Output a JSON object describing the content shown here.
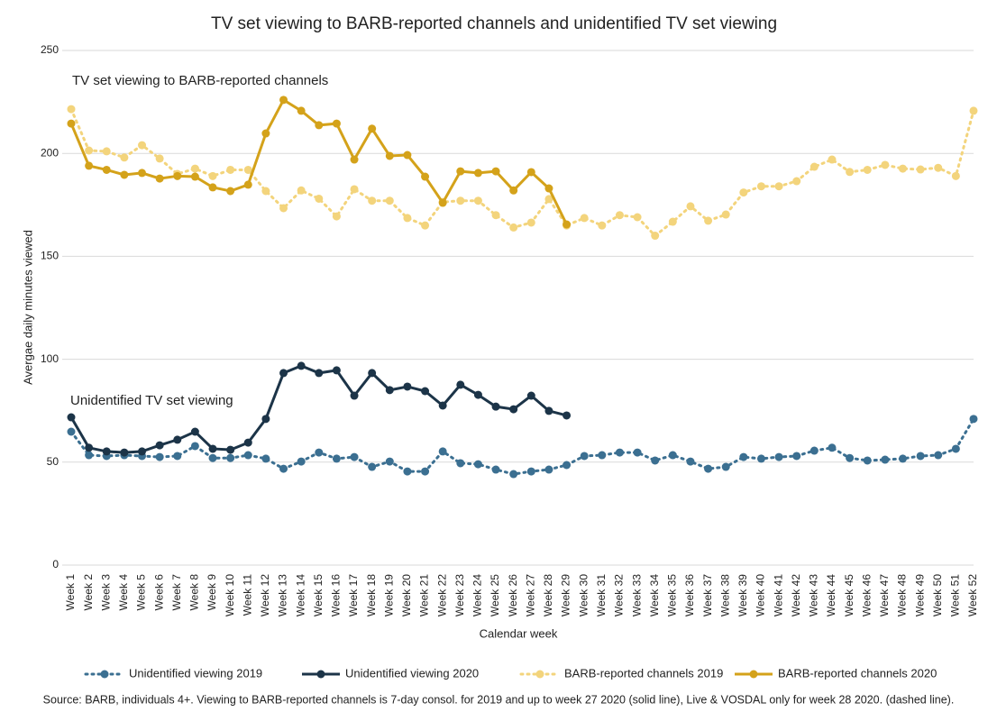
{
  "chart_data": {
    "type": "line",
    "title": "TV set viewing to BARB-reported channels and unidentified TV set viewing",
    "x_label": "Calendar week",
    "y_label": "Avergae daily minutes viewed",
    "annotations": [
      "TV set viewing to BARB-reported channels",
      "Unidentified TV set viewing"
    ],
    "source": "Source: BARB, individuals 4+. Viewing to BARB-reported channels is 7-day consol. for 2019 and up to week 27 2020 (solid line), Live & VOSDAL only for week 28 2020. (dashed line).",
    "categories": [
      "Week 1",
      "Week 2",
      "Week 3",
      "Week 4",
      "Week 5",
      "Week 6",
      "Week 7",
      "Week 8",
      "Week 9",
      "Week 10",
      "Week 11",
      "Week 12",
      "Week 13",
      "Week 14",
      "Week 15",
      "Week 16",
      "Week 17",
      "Week 18",
      "Week 19",
      "Week 20",
      "Week 21",
      "Week 22",
      "Week 23",
      "Week 24",
      "Week 25",
      "Week 26",
      "Week 27",
      "Week 28",
      "Week 29",
      "Week 30",
      "Week 31",
      "Week 32",
      "Week 33",
      "Week 34",
      "Week 35",
      "Week 36",
      "Week 37",
      "Week 38",
      "Week 39",
      "Week 40",
      "Week 41",
      "Week 42",
      "Week 43",
      "Week 44",
      "Week 45",
      "Week 46",
      "Week 47",
      "Week 48",
      "Week 49",
      "Week 50",
      "Week 51",
      "Week 52"
    ],
    "ylim": [
      0,
      250
    ],
    "yticks": [
      0,
      50,
      100,
      150,
      200,
      250
    ],
    "grid": true,
    "legend": "bottom",
    "series": [
      {
        "name": "Unidentified viewing 2019",
        "color": "#3b6f91",
        "line_style": "dotted",
        "values": [
          64.8,
          53.4,
          53,
          53.4,
          53,
          52.5,
          53,
          57.8,
          52,
          52,
          53.4,
          51.7,
          46.8,
          50.3,
          54.7,
          51.7,
          52.5,
          47.7,
          50.3,
          45.5,
          45.5,
          55.2,
          49.5,
          49,
          46.4,
          44.2,
          45.5,
          46.4,
          48.6,
          53,
          53.4,
          54.7,
          54.7,
          50.8,
          53.4,
          50.3,
          46.8,
          47.7,
          52.5,
          51.7,
          52.5,
          53,
          55.6,
          57,
          52,
          50.8,
          51.2,
          51.7,
          53,
          53.4,
          56.5,
          71
        ]
      },
      {
        "name": "Unidentified viewing 2020",
        "color": "#1c3448",
        "line_style": "solid",
        "values": [
          71.8,
          57,
          55.2,
          54.7,
          55.2,
          58.2,
          60.9,
          64.8,
          56.5,
          56,
          59.5,
          71,
          93.3,
          96.8,
          93.3,
          94.6,
          82.3,
          93.3,
          85,
          86.7,
          84.5,
          77.5,
          87.6,
          82.7,
          77,
          75.7,
          82.3,
          74.9,
          72.7,
          null,
          null,
          null,
          null,
          null,
          null,
          null,
          null,
          null,
          null,
          null,
          null,
          null,
          null,
          null,
          null,
          null,
          null,
          null,
          null,
          null,
          null,
          null
        ]
      },
      {
        "name": "BARB-reported channels 2019",
        "color": "#f3d47c",
        "line_style": "dotted",
        "values": [
          221.5,
          201.4,
          201,
          198,
          204,
          197.5,
          190,
          192.6,
          189,
          192,
          192,
          181.7,
          173.4,
          182,
          178,
          169.4,
          182.6,
          177,
          177,
          168.6,
          165,
          176.4,
          177,
          177,
          170,
          164,
          166.4,
          177.8,
          165,
          168.6,
          165,
          170,
          169,
          160,
          166.8,
          174.3,
          167.3,
          170.3,
          181,
          184,
          184,
          186.5,
          193.5,
          197,
          191,
          192,
          194.4,
          192.6,
          192.2,
          193,
          189,
          220.7
        ]
      },
      {
        "name": "BARB-reported channels 2020",
        "color": "#d4a21a",
        "line_style": "solid",
        "values": [
          214.5,
          194,
          192,
          189.6,
          190.5,
          187.8,
          189,
          188.7,
          183.5,
          181.7,
          184.8,
          209.7,
          226,
          220.7,
          213.7,
          214.5,
          197,
          212,
          198.8,
          199.2,
          188.7,
          176,
          191.3,
          190.5,
          191.3,
          182,
          190.9,
          183,
          165.5,
          null,
          null,
          null,
          null,
          null,
          null,
          null,
          null,
          null,
          null,
          null,
          null,
          null,
          null,
          null,
          null,
          null,
          null,
          null,
          null,
          null,
          null,
          null
        ]
      }
    ]
  }
}
